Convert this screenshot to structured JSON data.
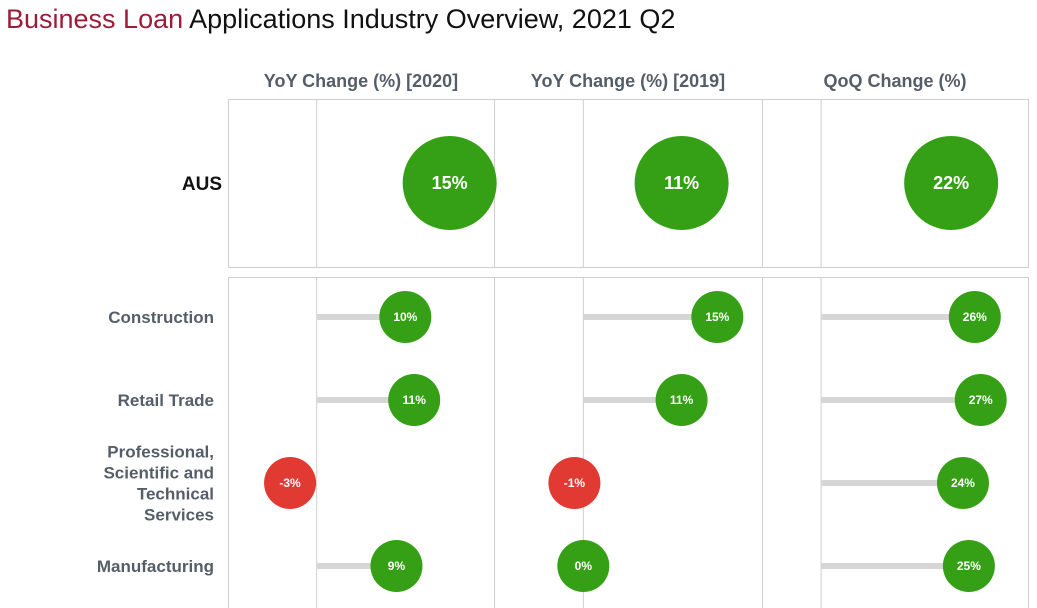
{
  "title": {
    "accent": "Business Loan",
    "rest": " Applications Industry Overview, 2021 Q2"
  },
  "colors": {
    "positive": "#35a016",
    "negative": "#e03a32",
    "stem": "#d6d6d6",
    "accent": "#9b1d38"
  },
  "chart_data": {
    "type": "scatter",
    "title": "Business Loan Applications Industry Overview, 2021 Q2",
    "columns": [
      "YoY Change (%) [2020]",
      "YoY Change (%) [2019]",
      "QoQ Change (%)"
    ],
    "column_ranges": [
      [
        -10,
        20
      ],
      [
        -10,
        20
      ],
      [
        -10,
        35
      ]
    ],
    "aggregate": {
      "name": "AUS",
      "values": [
        15,
        11,
        22
      ],
      "labels": [
        "15%",
        "11%",
        "22%"
      ]
    },
    "categories": [
      "Construction",
      "Retail Trade",
      "Professional, Scientific and Technical Services",
      "Manufacturing"
    ],
    "category_lines": [
      [
        "Construction"
      ],
      [
        "Retail Trade"
      ],
      [
        "Professional,",
        "Scientific and",
        "Technical",
        "Services"
      ],
      [
        "Manufacturing"
      ]
    ],
    "series": [
      {
        "name": "YoY Change (%) [2020]",
        "values": [
          10,
          11,
          -3,
          9
        ],
        "labels": [
          "10%",
          "11%",
          "-3%",
          "9%"
        ]
      },
      {
        "name": "YoY Change (%) [2019]",
        "values": [
          15,
          11,
          -1,
          0
        ],
        "labels": [
          "15%",
          "11%",
          "-1%",
          "0%"
        ]
      },
      {
        "name": "QoQ Change (%)",
        "values": [
          26,
          27,
          24,
          25
        ],
        "labels": [
          "26%",
          "27%",
          "24%",
          "25%"
        ]
      }
    ]
  }
}
